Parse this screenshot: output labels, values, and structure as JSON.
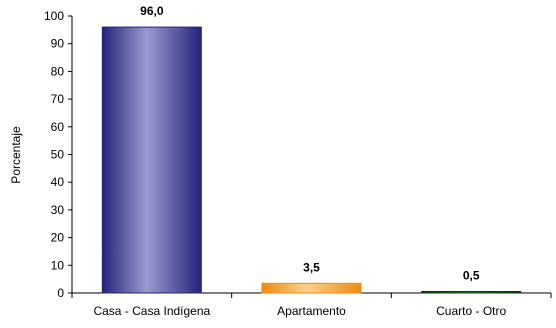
{
  "chart_data": {
    "type": "bar",
    "title": "",
    "xlabel": "",
    "ylabel": "Porcentaje",
    "ylim": [
      0,
      100
    ],
    "y_ticks": [
      0,
      10,
      20,
      30,
      40,
      50,
      60,
      70,
      80,
      90,
      100
    ],
    "categories": [
      "Casa - Casa Indígena",
      "Apartamento",
      "Cuarto - Otro"
    ],
    "values": [
      96.0,
      3.5,
      0.5
    ],
    "data_labels": [
      "96,0",
      "3,5",
      "0,5"
    ],
    "bar_colors": [
      {
        "light": "#9a9ad0",
        "dark": "#23237a"
      },
      {
        "light": "#ffd08a",
        "dark": "#f08a10"
      },
      {
        "light": "#4a8a4a",
        "dark": "#0a3a0a"
      }
    ],
    "grid": false,
    "legend": "none"
  }
}
